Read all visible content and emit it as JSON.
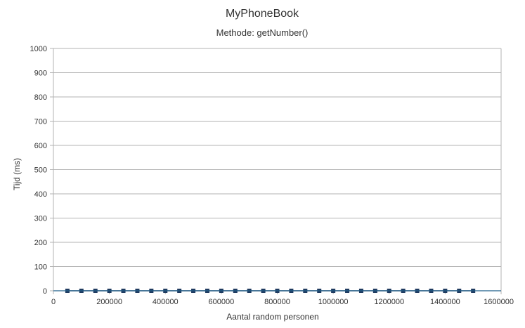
{
  "chart_data": {
    "type": "line",
    "title": "MyPhoneBook",
    "subtitle": "Methode: getNumber()",
    "xlabel": "Aantal random personen",
    "ylabel": "Tijd (ms)",
    "xlim": [
      0,
      1600000
    ],
    "ylim": [
      0,
      1000
    ],
    "x_ticks": [
      0,
      200000,
      400000,
      600000,
      800000,
      1000000,
      1200000,
      1400000,
      1600000
    ],
    "y_ticks": [
      0,
      100,
      200,
      300,
      400,
      500,
      600,
      700,
      800,
      900,
      1000
    ],
    "grid": true,
    "legend": "none",
    "series": [
      {
        "color": "#1f3a5f",
        "x": [
          50000,
          100000,
          150000,
          200000,
          250000,
          300000,
          350000,
          400000,
          450000,
          500000,
          550000,
          600000,
          650000,
          700000,
          750000,
          800000,
          850000,
          900000,
          950000,
          1000000,
          1050000,
          1100000,
          1150000,
          1200000,
          1250000,
          1300000,
          1350000,
          1400000,
          1450000,
          1500000
        ],
        "y": [
          0,
          0,
          0,
          0,
          0,
          0,
          0,
          0,
          0,
          0,
          0,
          0,
          0,
          0,
          0,
          0,
          0,
          0,
          0,
          0,
          0,
          0,
          0,
          0,
          0,
          0,
          0,
          0,
          0,
          0
        ]
      }
    ]
  }
}
